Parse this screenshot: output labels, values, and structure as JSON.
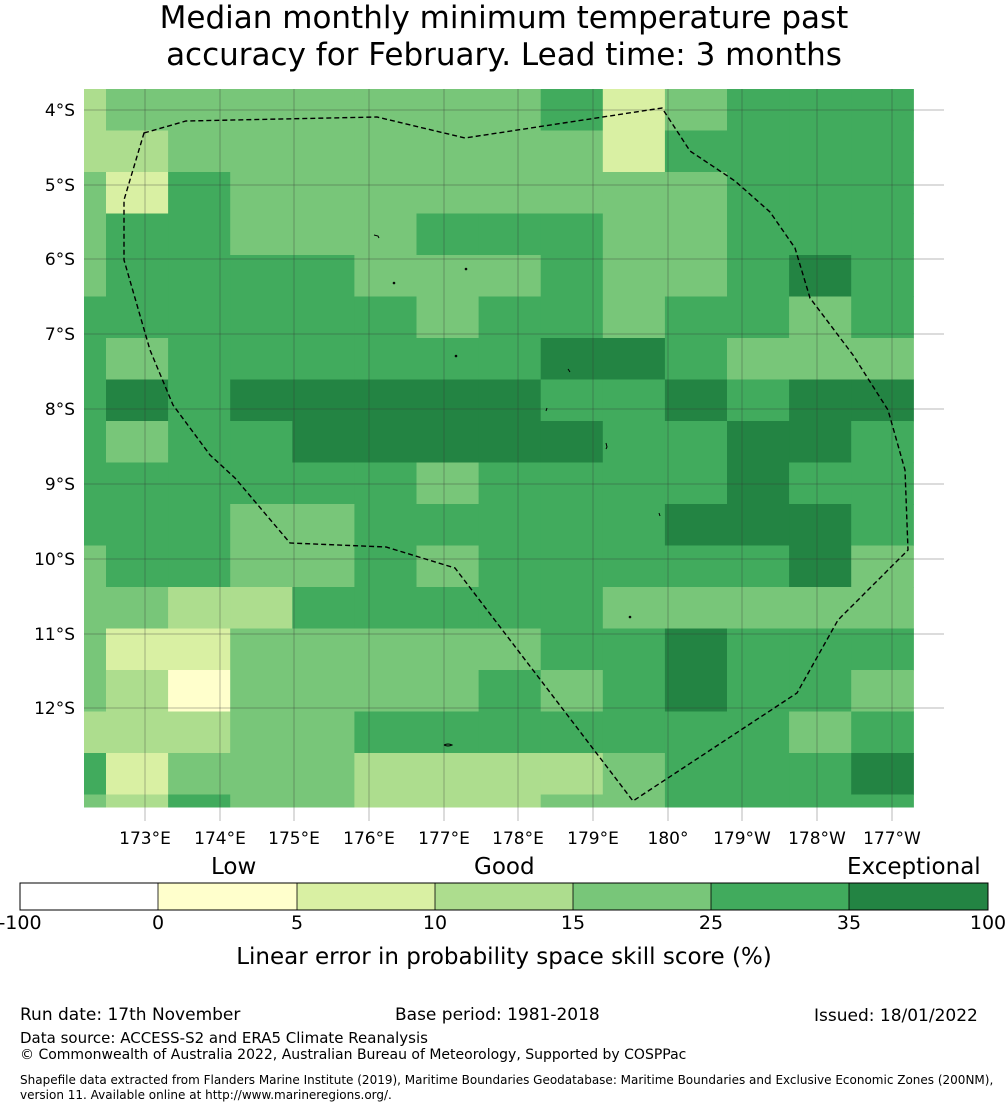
{
  "title_line1": "Median monthly minimum temperature past",
  "title_line2": "accuracy for February. Lead time: 3 months",
  "map": {
    "lat_labels": [
      "4°S",
      "5°S",
      "6°S",
      "7°S",
      "8°S",
      "9°S",
      "10°S",
      "11°S",
      "12°S"
    ],
    "lon_labels": [
      "173°E",
      "174°E",
      "175°E",
      "176°E",
      "177°E",
      "178°E",
      "179°E",
      "180°",
      "179°W",
      "178°W",
      "177°W"
    ],
    "boundary_line": "dashed black",
    "grid": {
      "cols": 14,
      "rows": 18,
      "rows_data": [
        "34444444524555",
        "33444444425555",
        "42544444444555",
        "45544455544555",
        "45555444544565",
        "55555545545545",
        "54555555665444",
        "56566666556566",
        "54556666655665",
        "55555545555655",
        "55544555556665",
        "45544545555564",
        "44335555544444",
        "42244444556555",
        "43144445456554",
        "33344555555545",
        "52444333345556",
        "43544333445555"
      ],
      "row_last_fraction": 0.3
    }
  },
  "colorbar": {
    "category_labels": [
      "Low",
      "Good",
      "Exceptional"
    ],
    "ticks": [
      "-100",
      "0",
      "5",
      "10",
      "15",
      "25",
      "35",
      "100"
    ],
    "colors": [
      "#ffffff",
      "#ffffcc",
      "#d9f0a3",
      "#addd8e",
      "#78c679",
      "#41ab5d",
      "#238443"
    ],
    "title": "Linear error in probability space skill score (%)"
  },
  "footer": {
    "run_date": "Run date: 17th November",
    "base_period": "Base period: 1981-2018",
    "issued": "Issued: 18/01/2022",
    "data_source": "Data source: ACCESS-S2 and ERA5 Climate Reanalysis",
    "copyright": "© Commonwealth of Australia 2022, Australian Bureau of Meteorology, Supported by COSPPac",
    "shapefile": "Shapefile data extracted from Flanders Marine Institute (2019), Maritime Boundaries Geodatabase: Maritime Boundaries and Exclusive Economic Zones (200NM), version 11. Available online at http://www.marineregions.org/."
  }
}
